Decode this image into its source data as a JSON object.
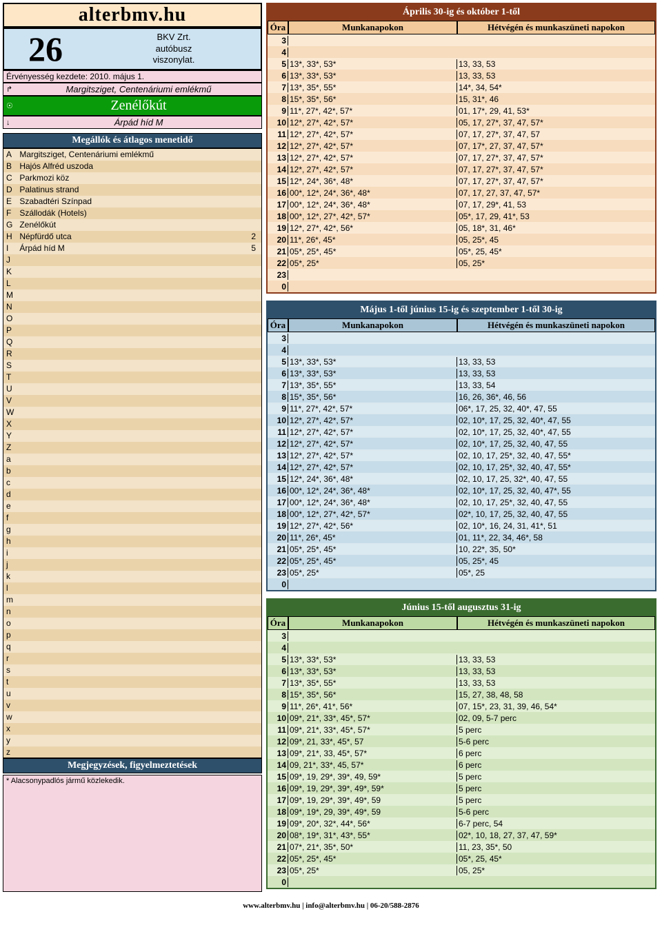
{
  "site_name": "alterbmv.hu",
  "route_number": "26",
  "operator": "BKV Zrt.",
  "vehicle_type": "autóbusz",
  "relation": "viszonylat.",
  "validity_label": "Érvényesség kezdete:",
  "validity_date": "2010. május 1.",
  "endpoint_start_icon": "↱",
  "endpoint_start": "Margitsziget, Centenáriumi emlékmű",
  "current_stop_icon": "☉",
  "current_stop": "Zenélőkút",
  "endpoint_end_icon": "↓",
  "endpoint_end": "Árpád híd M",
  "stops_title": "Megállók és átlagos menetidő",
  "stops": [
    {
      "l": "A",
      "n": "Margitsziget, Centenáriumi emlékmű",
      "t": ""
    },
    {
      "l": "B",
      "n": "Hajós Alfréd uszoda",
      "t": ""
    },
    {
      "l": "C",
      "n": "Parkmozi köz",
      "t": ""
    },
    {
      "l": "D",
      "n": "Palatinus strand",
      "t": ""
    },
    {
      "l": "E",
      "n": "Szabadtéri Színpad",
      "t": ""
    },
    {
      "l": "F",
      "n": "Szállodák (Hotels)",
      "t": ""
    },
    {
      "l": "G",
      "n": "Zenélőkút",
      "t": ""
    },
    {
      "l": "H",
      "n": "Népfürdő utca",
      "t": "2"
    },
    {
      "l": "I",
      "n": "Árpád híd M",
      "t": "5"
    },
    {
      "l": "J",
      "n": "",
      "t": ""
    },
    {
      "l": "K",
      "n": "",
      "t": ""
    },
    {
      "l": "L",
      "n": "",
      "t": ""
    },
    {
      "l": "M",
      "n": "",
      "t": ""
    },
    {
      "l": "N",
      "n": "",
      "t": ""
    },
    {
      "l": "O",
      "n": "",
      "t": ""
    },
    {
      "l": "P",
      "n": "",
      "t": ""
    },
    {
      "l": "Q",
      "n": "",
      "t": ""
    },
    {
      "l": "R",
      "n": "",
      "t": ""
    },
    {
      "l": "S",
      "n": "",
      "t": ""
    },
    {
      "l": "T",
      "n": "",
      "t": ""
    },
    {
      "l": "U",
      "n": "",
      "t": ""
    },
    {
      "l": "V",
      "n": "",
      "t": ""
    },
    {
      "l": "W",
      "n": "",
      "t": ""
    },
    {
      "l": "X",
      "n": "",
      "t": ""
    },
    {
      "l": "Y",
      "n": "",
      "t": ""
    },
    {
      "l": "Z",
      "n": "",
      "t": ""
    },
    {
      "l": "a",
      "n": "",
      "t": ""
    },
    {
      "l": "b",
      "n": "",
      "t": ""
    },
    {
      "l": "c",
      "n": "",
      "t": ""
    },
    {
      "l": "d",
      "n": "",
      "t": ""
    },
    {
      "l": "e",
      "n": "",
      "t": ""
    },
    {
      "l": "f",
      "n": "",
      "t": ""
    },
    {
      "l": "g",
      "n": "",
      "t": ""
    },
    {
      "l": "h",
      "n": "",
      "t": ""
    },
    {
      "l": "i",
      "n": "",
      "t": ""
    },
    {
      "l": "j",
      "n": "",
      "t": ""
    },
    {
      "l": "k",
      "n": "",
      "t": ""
    },
    {
      "l": "l",
      "n": "",
      "t": ""
    },
    {
      "l": "m",
      "n": "",
      "t": ""
    },
    {
      "l": "n",
      "n": "",
      "t": ""
    },
    {
      "l": "o",
      "n": "",
      "t": ""
    },
    {
      "l": "p",
      "n": "",
      "t": ""
    },
    {
      "l": "q",
      "n": "",
      "t": ""
    },
    {
      "l": "r",
      "n": "",
      "t": ""
    },
    {
      "l": "s",
      "n": "",
      "t": ""
    },
    {
      "l": "t",
      "n": "",
      "t": ""
    },
    {
      "l": "u",
      "n": "",
      "t": ""
    },
    {
      "l": "v",
      "n": "",
      "t": ""
    },
    {
      "l": "w",
      "n": "",
      "t": ""
    },
    {
      "l": "x",
      "n": "",
      "t": ""
    },
    {
      "l": "y",
      "n": "",
      "t": ""
    },
    {
      "l": "z",
      "n": "",
      "t": ""
    }
  ],
  "notes_title": "Megjegyzések, figyelmeztetések",
  "notes_text": "* Alacsonypadlós jármű közlekedik.",
  "col_hour": "Óra",
  "col_work": "Munkanapokon",
  "col_week": "Hétvégén és munkaszüneti napokon",
  "schedules": [
    {
      "title": "Április 30-ig és október 1-től",
      "border_color": "#8a3b1c",
      "title_bg": "#8a3b1c",
      "head_bg": "#f2c99a",
      "row_a": "#fbe9d4",
      "row_b": "#f7dcbd",
      "rows": [
        {
          "h": "3",
          "w": "",
          "we": ""
        },
        {
          "h": "4",
          "w": "",
          "we": ""
        },
        {
          "h": "5",
          "w": "13*, 33*, 53*",
          "we": "13, 33, 53"
        },
        {
          "h": "6",
          "w": "13*, 33*, 53*",
          "we": "13, 33, 53"
        },
        {
          "h": "7",
          "w": "13*, 35*, 55*",
          "we": "14*, 34, 54*"
        },
        {
          "h": "8",
          "w": "15*, 35*, 56*",
          "we": "15, 31*, 46"
        },
        {
          "h": "9",
          "w": "11*, 27*, 42*, 57*",
          "we": "01, 17*, 29, 41, 53*"
        },
        {
          "h": "10",
          "w": "12*, 27*, 42*, 57*",
          "we": "05, 17, 27*, 37, 47, 57*"
        },
        {
          "h": "11",
          "w": "12*, 27*, 42*, 57*",
          "we": "07, 17, 27*, 37, 47, 57"
        },
        {
          "h": "12",
          "w": "12*, 27*, 42*, 57*",
          "we": "07, 17*, 27, 37, 47, 57*"
        },
        {
          "h": "13",
          "w": "12*, 27*, 42*, 57*",
          "we": "07, 17, 27*, 37, 47, 57*"
        },
        {
          "h": "14",
          "w": "12*, 27*, 42*, 57*",
          "we": "07, 17, 27*, 37, 47, 57*"
        },
        {
          "h": "15",
          "w": "12*, 24*, 36*, 48*",
          "we": "07, 17, 27*, 37, 47, 57*"
        },
        {
          "h": "16",
          "w": "00*, 12*, 24*, 36*, 48*",
          "we": "07, 17, 27, 37, 47, 57*"
        },
        {
          "h": "17",
          "w": "00*, 12*, 24*, 36*, 48*",
          "we": "07, 17, 29*, 41, 53"
        },
        {
          "h": "18",
          "w": "00*, 12*, 27*, 42*, 57*",
          "we": "05*, 17, 29, 41*, 53"
        },
        {
          "h": "19",
          "w": "12*, 27*, 42*, 56*",
          "we": "05, 18*, 31, 46*"
        },
        {
          "h": "20",
          "w": "11*, 26*, 45*",
          "we": "05, 25*, 45"
        },
        {
          "h": "21",
          "w": "05*, 25*, 45*",
          "we": "05*, 25, 45*"
        },
        {
          "h": "22",
          "w": "05*, 25*",
          "we": "05, 25*"
        },
        {
          "h": "23",
          "w": "",
          "we": ""
        },
        {
          "h": "0",
          "w": "",
          "we": ""
        }
      ]
    },
    {
      "title": "Május 1-től június 15-ig és szeptember 1-től 30-ig",
      "border_color": "#2e506b",
      "title_bg": "#2e506b",
      "head_bg": "#a9c5d6",
      "row_a": "#dbe9f0",
      "row_b": "#c6dce8",
      "rows": [
        {
          "h": "3",
          "w": "",
          "we": ""
        },
        {
          "h": "4",
          "w": "",
          "we": ""
        },
        {
          "h": "5",
          "w": "13*, 33*, 53*",
          "we": "13, 33, 53"
        },
        {
          "h": "6",
          "w": "13*, 33*, 53*",
          "we": "13, 33, 53"
        },
        {
          "h": "7",
          "w": "13*, 35*, 55*",
          "we": "13, 33, 54"
        },
        {
          "h": "8",
          "w": "15*, 35*, 56*",
          "we": "16, 26, 36*, 46, 56"
        },
        {
          "h": "9",
          "w": "11*, 27*, 42*, 57*",
          "we": "06*, 17, 25, 32, 40*, 47, 55"
        },
        {
          "h": "10",
          "w": "12*, 27*, 42*, 57*",
          "we": "02, 10*, 17, 25, 32, 40*, 47, 55"
        },
        {
          "h": "11",
          "w": "12*, 27*, 42*, 57*",
          "we": "02, 10*, 17, 25, 32, 40*, 47, 55"
        },
        {
          "h": "12",
          "w": "12*, 27*, 42*, 57*",
          "we": "02, 10*, 17, 25, 32, 40, 47, 55"
        },
        {
          "h": "13",
          "w": "12*, 27*, 42*, 57*",
          "we": "02, 10, 17, 25*, 32, 40, 47, 55*"
        },
        {
          "h": "14",
          "w": "12*, 27*, 42*, 57*",
          "we": "02, 10, 17, 25*, 32, 40, 47, 55*"
        },
        {
          "h": "15",
          "w": "12*, 24*, 36*, 48*",
          "we": "02, 10, 17, 25, 32*, 40, 47, 55"
        },
        {
          "h": "16",
          "w": "00*, 12*, 24*, 36*, 48*",
          "we": "02, 10*, 17, 25, 32, 40, 47*, 55"
        },
        {
          "h": "17",
          "w": "00*, 12*, 24*, 36*, 48*",
          "we": "02, 10, 17, 25*, 32, 40, 47, 55"
        },
        {
          "h": "18",
          "w": "00*, 12*, 27*, 42*, 57*",
          "we": "02*, 10, 17, 25, 32, 40, 47, 55"
        },
        {
          "h": "19",
          "w": "12*, 27*, 42*, 56*",
          "we": "02, 10*, 16, 24, 31, 41*, 51"
        },
        {
          "h": "20",
          "w": "11*, 26*, 45*",
          "we": "01, 11*, 22, 34, 46*, 58"
        },
        {
          "h": "21",
          "w": "05*, 25*, 45*",
          "we": "10, 22*, 35, 50*"
        },
        {
          "h": "22",
          "w": "05*, 25*, 45*",
          "we": "05, 25*, 45"
        },
        {
          "h": "23",
          "w": "05*, 25*",
          "we": "05*, 25"
        },
        {
          "h": "0",
          "w": "",
          "we": ""
        }
      ]
    },
    {
      "title": "Június 15-től augusztus 31-ig",
      "border_color": "#3a6b2f",
      "title_bg": "#3a6b2f",
      "head_bg": "#bedaa4",
      "row_a": "#e2efd4",
      "row_b": "#d2e5bf",
      "rows": [
        {
          "h": "3",
          "w": "",
          "we": ""
        },
        {
          "h": "4",
          "w": "",
          "we": ""
        },
        {
          "h": "5",
          "w": "13*, 33*, 53*",
          "we": "13, 33, 53"
        },
        {
          "h": "6",
          "w": "13*, 33*, 53*",
          "we": "13, 33, 53"
        },
        {
          "h": "7",
          "w": "13*, 35*, 55*",
          "we": "13, 33, 53"
        },
        {
          "h": "8",
          "w": "15*, 35*, 56*",
          "we": "15, 27, 38, 48, 58"
        },
        {
          "h": "9",
          "w": "11*, 26*, 41*, 56*",
          "we": "07, 15*, 23, 31, 39, 46, 54*"
        },
        {
          "h": "10",
          "w": "09*, 21*, 33*, 45*, 57*",
          "we": "02, 09, 5-7 perc"
        },
        {
          "h": "11",
          "w": "09*, 21*, 33*, 45*, 57*",
          "we": "5 perc"
        },
        {
          "h": "12",
          "w": "09*, 21, 33*, 45*, 57",
          "we": "5-6 perc"
        },
        {
          "h": "13",
          "w": "09*, 21*, 33, 45*, 57*",
          "we": "6 perc"
        },
        {
          "h": "14",
          "w": "09, 21*, 33*, 45, 57*",
          "we": "6 perc"
        },
        {
          "h": "15",
          "w": "09*, 19, 29*, 39*, 49, 59*",
          "we": "5 perc"
        },
        {
          "h": "16",
          "w": "09*, 19, 29*, 39*, 49*, 59*",
          "we": "5 perc"
        },
        {
          "h": "17",
          "w": "09*, 19, 29*, 39*, 49*, 59",
          "we": "5 perc"
        },
        {
          "h": "18",
          "w": "09*, 19*, 29, 39*, 49*, 59",
          "we": "5-6 perc"
        },
        {
          "h": "19",
          "w": "09*, 20*, 32*, 44*, 56*",
          "we": "6-7 perc, 54"
        },
        {
          "h": "20",
          "w": "08*, 19*, 31*, 43*, 55*",
          "we": "02*, 10, 18, 27, 37, 47, 59*"
        },
        {
          "h": "21",
          "w": "07*, 21*, 35*, 50*",
          "we": "11, 23, 35*, 50"
        },
        {
          "h": "22",
          "w": "05*, 25*, 45*",
          "we": "05*, 25, 45*"
        },
        {
          "h": "23",
          "w": "05*, 25*",
          "we": "05, 25*"
        },
        {
          "h": "0",
          "w": "",
          "we": ""
        }
      ]
    }
  ],
  "footer": "www.alterbmv.hu  |  info@alterbmv.hu  |  06-20/588-2876",
  "stops_bg_a": "#f3e3c8",
  "stops_bg_b": "#ead3ab"
}
